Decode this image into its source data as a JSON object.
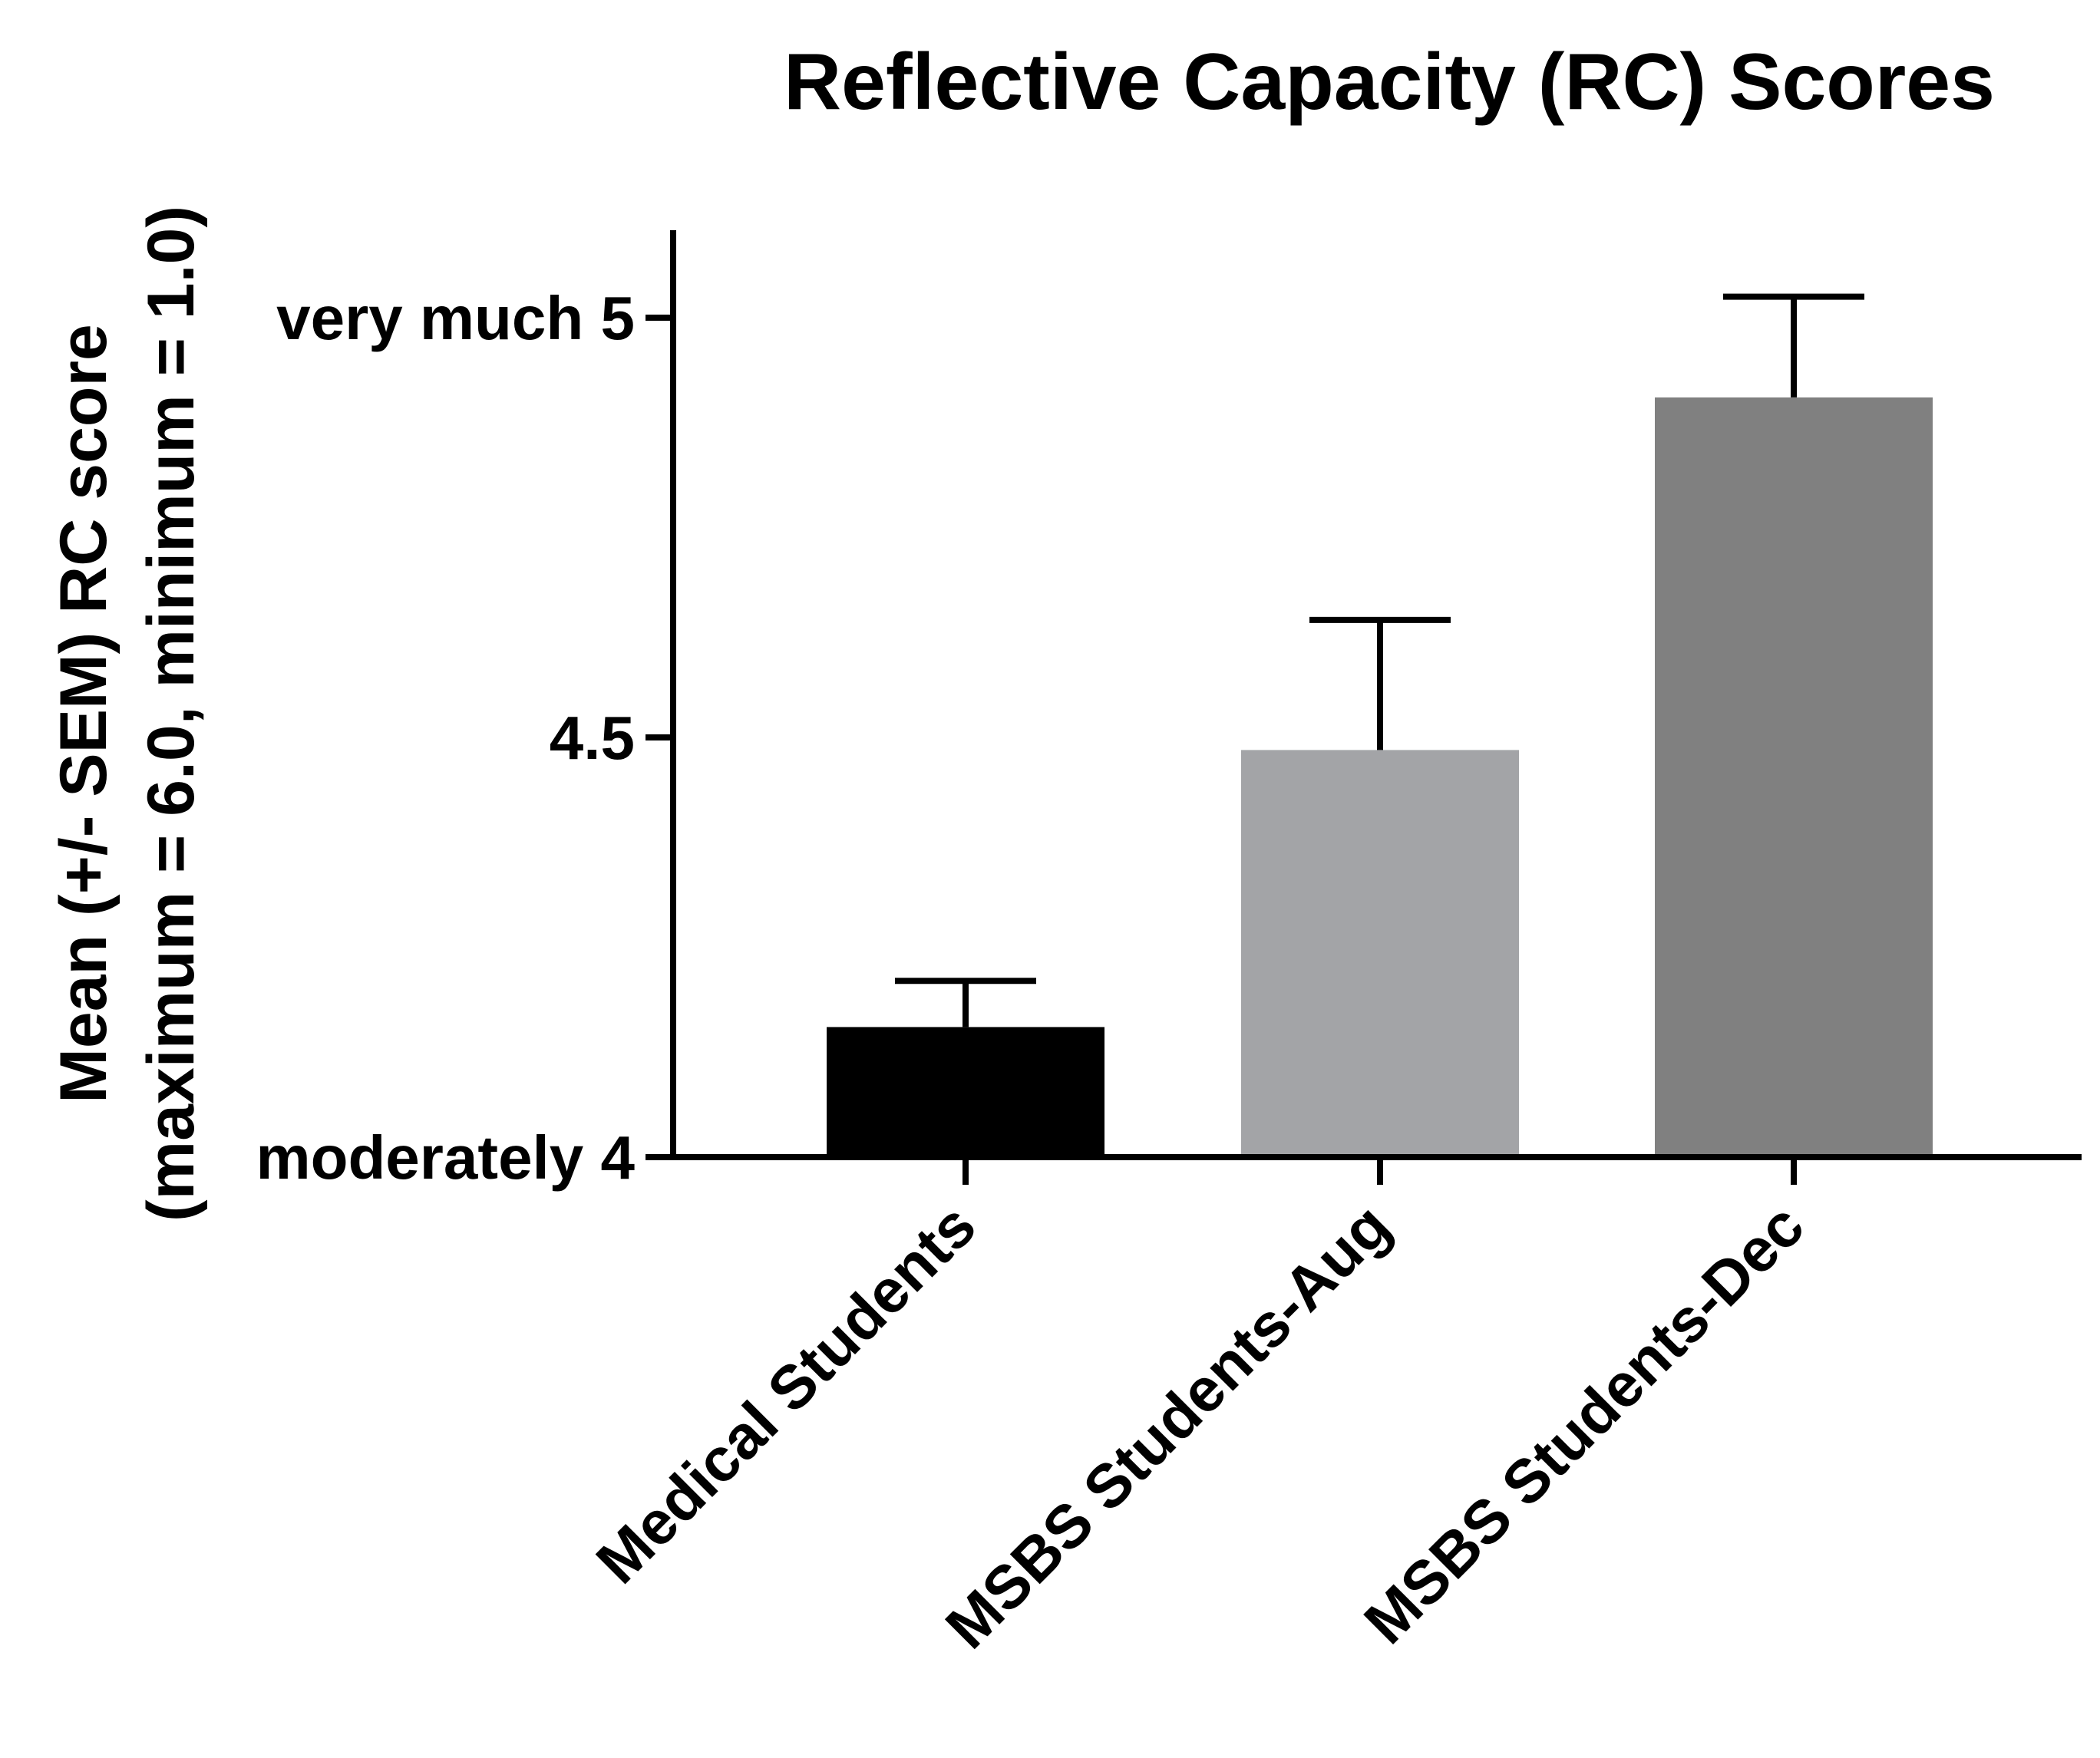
{
  "chart_data": {
    "type": "bar",
    "title": "Reflective Capacity (RC) Scores",
    "ylabel_line1": "Mean (+/- SEM) RC score",
    "ylabel_line2": "(maximum = 6.0, minimum = 1.0)",
    "xlabel": "",
    "ylim": [
      4.0,
      5.1
    ],
    "yticks": [
      {
        "value": 4.0,
        "label": "moderately 4"
      },
      {
        "value": 4.5,
        "label": "4.5"
      },
      {
        "value": 5.0,
        "label": "very much 5"
      }
    ],
    "categories": [
      "Medical Students",
      "MSBS Students-Aug",
      "MSBS Students-Dec"
    ],
    "values": [
      4.155,
      4.485,
      4.905
    ],
    "errors": [
      0.055,
      0.155,
      0.12
    ],
    "colors": [
      "#000000",
      "#a3a4a7",
      "#808080"
    ]
  }
}
